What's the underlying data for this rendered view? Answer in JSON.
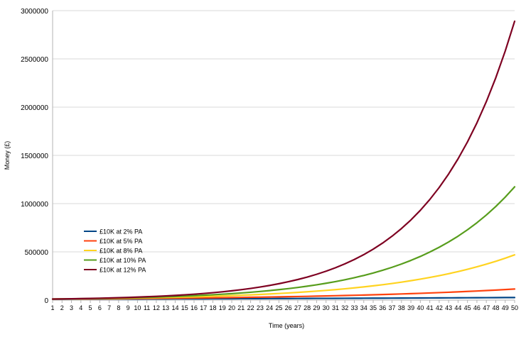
{
  "chart_data": {
    "type": "line",
    "xlabel": "Time (years)",
    "ylabel": "Money (£)",
    "xlim": [
      1,
      50
    ],
    "ylim": [
      0,
      3000000
    ],
    "y_ticks": [
      "0",
      "500000",
      "1000000",
      "1500000",
      "2000000",
      "2500000",
      "3000000"
    ],
    "x_ticks": [
      "1",
      "2",
      "3",
      "4",
      "5",
      "6",
      "7",
      "8",
      "9",
      "10",
      "11",
      "12",
      "13",
      "14",
      "15",
      "16",
      "17",
      "18",
      "19",
      "20",
      "21",
      "22",
      "23",
      "24",
      "25",
      "26",
      "27",
      "28",
      "29",
      "30",
      "31",
      "32",
      "33",
      "34",
      "35",
      "36",
      "37",
      "38",
      "39",
      "40",
      "41",
      "42",
      "43",
      "44",
      "45",
      "46",
      "47",
      "48",
      "49",
      "50"
    ],
    "grid": "horizontal",
    "legend_position": "left",
    "x": [
      1,
      2,
      3,
      4,
      5,
      6,
      7,
      8,
      9,
      10,
      11,
      12,
      13,
      14,
      15,
      16,
      17,
      18,
      19,
      20,
      21,
      22,
      23,
      24,
      25,
      26,
      27,
      28,
      29,
      30,
      31,
      32,
      33,
      34,
      35,
      36,
      37,
      38,
      39,
      40,
      41,
      42,
      43,
      44,
      45,
      46,
      47,
      48,
      49,
      50
    ],
    "series": [
      {
        "name": "£10K at 2% PA",
        "color": "#004586",
        "values": [
          10200,
          10404,
          10612,
          10824,
          11041,
          11262,
          11487,
          11717,
          11951,
          12190,
          12434,
          12682,
          12936,
          13195,
          13459,
          13728,
          14002,
          14282,
          14568,
          14859,
          15157,
          15460,
          15769,
          16084,
          16406,
          16734,
          17069,
          17410,
          17758,
          18114,
          18476,
          18845,
          19222,
          19607,
          19999,
          20399,
          20807,
          21223,
          21647,
          22080,
          22522,
          22972,
          23432,
          23901,
          24379,
          24866,
          25363,
          25871,
          26388,
          26916
        ]
      },
      {
        "name": "£10K at 5% PA",
        "color": "#ff420e",
        "values": [
          10500,
          11025,
          11576,
          12155,
          12763,
          13401,
          14071,
          14775,
          15513,
          16289,
          17103,
          17959,
          18856,
          19799,
          20789,
          21829,
          22920,
          24066,
          25270,
          26533,
          27860,
          29253,
          30715,
          32251,
          33864,
          35557,
          37335,
          39201,
          41161,
          43219,
          45380,
          47649,
          50032,
          52533,
          55160,
          57918,
          60814,
          63855,
          67048,
          70400,
          73920,
          77616,
          81497,
          85572,
          89850,
          94343,
          99060,
          104013,
          109213,
          114674
        ]
      },
      {
        "name": "£10K at 8% PA",
        "color": "#ffd320",
        "values": [
          10800,
          11664,
          12597,
          13605,
          14693,
          15869,
          17138,
          18509,
          19990,
          21589,
          23316,
          25182,
          27196,
          29372,
          31722,
          34259,
          37000,
          39960,
          43157,
          46610,
          50338,
          54365,
          58715,
          63412,
          68485,
          73964,
          79881,
          86271,
          93173,
          100627,
          108677,
          117371,
          126760,
          136901,
          147853,
          159682,
          172456,
          186253,
          201153,
          217245,
          234625,
          253395,
          273666,
          295560,
          319204,
          344741,
          372320,
          402106,
          434274,
          469016
        ]
      },
      {
        "name": "£10K at 10% PA",
        "color": "#579d1c",
        "values": [
          11000,
          12100,
          13310,
          14641,
          16105,
          17716,
          19487,
          21436,
          23579,
          25937,
          28531,
          31384,
          34523,
          37975,
          41772,
          45950,
          50545,
          55599,
          61159,
          67275,
          74002,
          81403,
          89543,
          98497,
          108347,
          119182,
          131100,
          144210,
          158631,
          174494,
          191943,
          211138,
          232252,
          255477,
          281024,
          309127,
          340039,
          374043,
          411448,
          452593,
          497852,
          547637,
          602401,
          662641,
          728905,
          801795,
          881975,
          970172,
          1067190,
          1173909
        ]
      },
      {
        "name": "£10K at 12% PA",
        "color": "#7e0021",
        "values": [
          11200,
          12544,
          14049,
          15735,
          17623,
          19738,
          22107,
          24760,
          27731,
          31058,
          34785,
          38960,
          43635,
          48871,
          54736,
          61304,
          68660,
          76900,
          86128,
          96463,
          108038,
          121003,
          135523,
          151786,
          170001,
          190401,
          213249,
          238839,
          267499,
          299599,
          335551,
          375817,
          420915,
          471425,
          527996,
          591356,
          662318,
          741797,
          830812,
          930510,
          1042171,
          1167232,
          1307300,
          1464176,
          1639877,
          1836662,
          2057061,
          2303908,
          2580377,
          2890022
        ]
      }
    ]
  }
}
